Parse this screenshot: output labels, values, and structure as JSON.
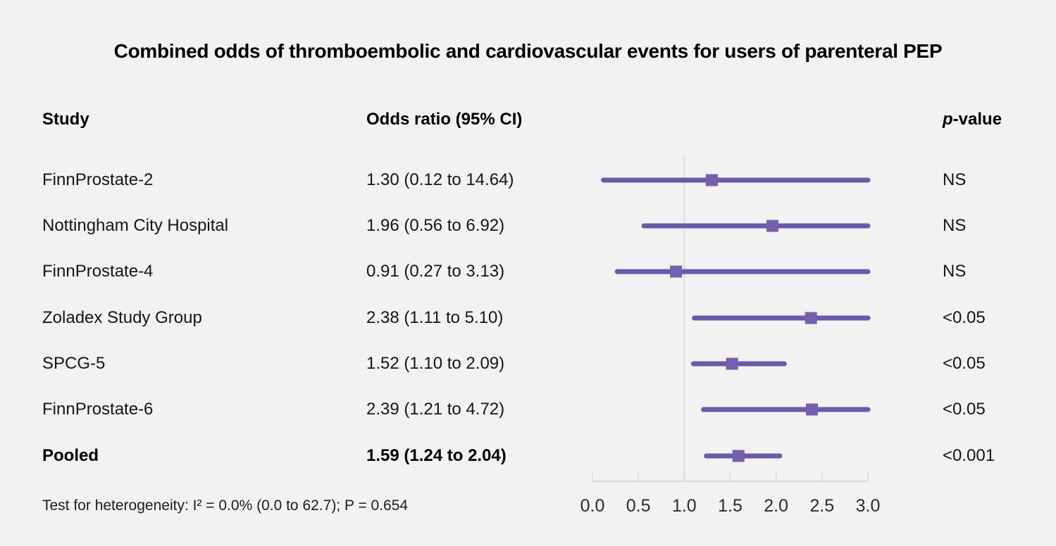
{
  "page": {
    "title": "Combined odds of thromboembolic and cardiovascular events for users of parenteral PEP",
    "background": "#f2f2f2"
  },
  "table": {
    "headers": {
      "study": "Study",
      "odds_ratio": "Odds ratio (95% CI)",
      "p_italic": "p",
      "p_rest": "-value"
    },
    "footer": "Test for heterogeneity: I² = 0.0% (0.0 to 62.7); P = 0.654"
  },
  "chart_data": {
    "type": "scatter",
    "subtype": "forest-plot",
    "title": "Combined odds of thromboembolic and cardiovascular events for users of parenteral PEP",
    "xlabel": "",
    "ylabel": "",
    "xlim": [
      0.0,
      3.0
    ],
    "xticks": [
      0.0,
      0.5,
      1.0,
      1.5,
      2.0,
      2.5,
      3.0
    ],
    "xtick_labels": [
      "0.0",
      "0.5",
      "1.0",
      "1.5",
      "2.0",
      "2.5",
      "3.0"
    ],
    "reference_line_x": 1.0,
    "grid": false,
    "legend": "none",
    "series": [
      {
        "name": "FinnProstate-2",
        "odds_ratio": 1.3,
        "ci_low": 0.12,
        "ci_high": 14.64,
        "label": "1.30 (0.12 to 14.64)",
        "p_value": "NS",
        "pooled": false
      },
      {
        "name": "Nottingham City Hospital",
        "odds_ratio": 1.96,
        "ci_low": 0.56,
        "ci_high": 6.92,
        "label": "1.96 (0.56 to 6.92)",
        "p_value": "NS",
        "pooled": false
      },
      {
        "name": "FinnProstate-4",
        "odds_ratio": 0.91,
        "ci_low": 0.27,
        "ci_high": 3.13,
        "label": "0.91 (0.27 to 3.13)",
        "p_value": "NS",
        "pooled": false
      },
      {
        "name": "Zoladex Study Group",
        "odds_ratio": 2.38,
        "ci_low": 1.11,
        "ci_high": 5.1,
        "label": "2.38 (1.11 to 5.10)",
        "p_value": "<0.05",
        "pooled": false
      },
      {
        "name": "SPCG-5",
        "odds_ratio": 1.52,
        "ci_low": 1.1,
        "ci_high": 2.09,
        "label": "1.52 (1.10 to 2.09)",
        "p_value": "<0.05",
        "pooled": false
      },
      {
        "name": "FinnProstate-6",
        "odds_ratio": 2.39,
        "ci_low": 1.21,
        "ci_high": 4.72,
        "label": "2.39 (1.21 to 4.72)",
        "p_value": "<0.05",
        "pooled": false
      },
      {
        "name": "Pooled",
        "odds_ratio": 1.59,
        "ci_low": 1.24,
        "ci_high": 2.04,
        "label": "1.59 (1.24 to 2.04)",
        "p_value": "<0.001",
        "pooled": true
      }
    ],
    "colors": {
      "ci_line": "#6a59a8",
      "marker": "#7560ae",
      "reference_line": "#dde2e7",
      "axis": "#d9dde2",
      "tick_label": "#2b2b2b"
    }
  }
}
